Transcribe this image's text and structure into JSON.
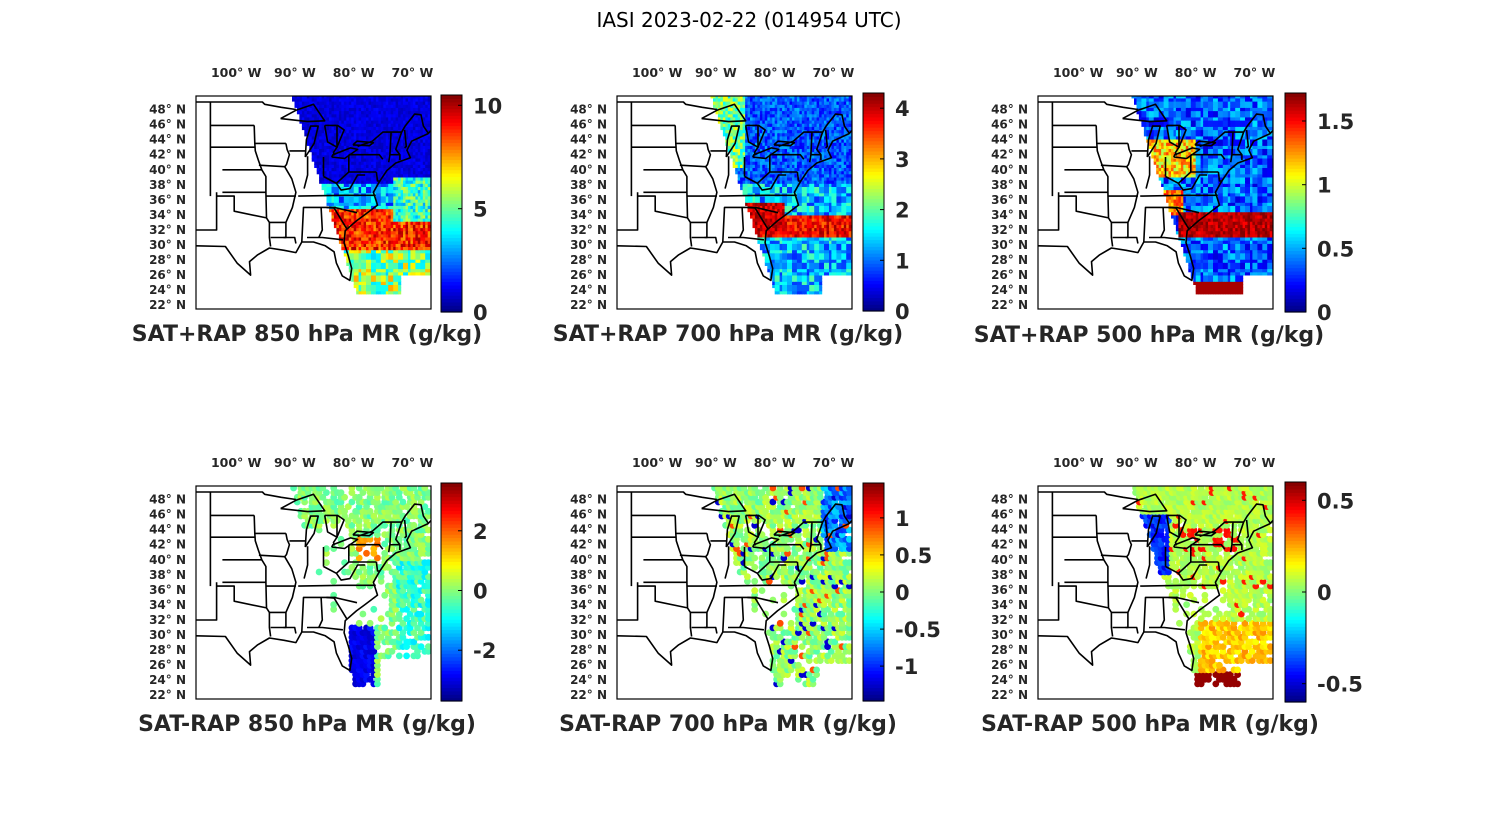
{
  "figure": {
    "title": "IASI 2023-02-22 (014954 UTC)",
    "lon_ticks": [
      "100° W",
      "90° W",
      "80° W",
      "70° W"
    ],
    "lat_ticks": [
      "48° N",
      "46° N",
      "44° N",
      "42° N",
      "40° N",
      "38° N",
      "36° N",
      "34° N",
      "32° N",
      "30° N",
      "28° N",
      "26° N",
      "24° N",
      "22° N"
    ],
    "colormap": "jet",
    "panels": [
      {
        "id": "sat-rap-sum-850",
        "label": "SAT+RAP 850 hPa MR (g/kg)",
        "pattern": "sum850",
        "clim": [
          0,
          10.5
        ],
        "cbar_ticks": [
          {
            "v": 0,
            "t": "0"
          },
          {
            "v": 5,
            "t": "5"
          },
          {
            "v": 10,
            "t": "10"
          }
        ]
      },
      {
        "id": "sat-rap-sum-700",
        "label": "SAT+RAP 700 hPa MR (g/kg)",
        "pattern": "sum700",
        "clim": [
          0,
          4.3
        ],
        "cbar_ticks": [
          {
            "v": 0,
            "t": "0"
          },
          {
            "v": 1,
            "t": "1"
          },
          {
            "v": 2,
            "t": "2"
          },
          {
            "v": 3,
            "t": "3"
          },
          {
            "v": 4,
            "t": "4"
          }
        ]
      },
      {
        "id": "sat-rap-sum-500",
        "label": "SAT+RAP 500 hPa MR (g/kg)",
        "pattern": "sum500",
        "clim": [
          0,
          1.72
        ],
        "cbar_ticks": [
          {
            "v": 0,
            "t": "0"
          },
          {
            "v": 0.5,
            "t": "0.5"
          },
          {
            "v": 1,
            "t": "1"
          },
          {
            "v": 1.5,
            "t": "1.5"
          }
        ]
      },
      {
        "id": "sat-rap-diff-850",
        "label": "SAT-RAP 850 hPa MR (g/kg)",
        "pattern": "diff850",
        "clim": [
          -3.7,
          3.6
        ],
        "cbar_ticks": [
          {
            "v": -2,
            "t": "-2"
          },
          {
            "v": 0,
            "t": "0"
          },
          {
            "v": 2,
            "t": "2"
          }
        ]
      },
      {
        "id": "sat-rap-diff-700",
        "label": "SAT-RAP 700 hPa MR (g/kg)",
        "pattern": "diff700",
        "clim": [
          -1.47,
          1.47
        ],
        "cbar_ticks": [
          {
            "v": -1,
            "t": "-1"
          },
          {
            "v": -0.5,
            "t": "-0.5"
          },
          {
            "v": 0,
            "t": "0"
          },
          {
            "v": 0.5,
            "t": "0.5"
          },
          {
            "v": 1,
            "t": "1"
          }
        ]
      },
      {
        "id": "sat-rap-diff-500",
        "label": "SAT-RAP 500 hPa MR (g/kg)",
        "pattern": "diff500",
        "clim": [
          -0.6,
          0.6
        ],
        "cbar_ticks": [
          {
            "v": -0.5,
            "t": "-0.5"
          },
          {
            "v": 0,
            "t": "0"
          },
          {
            "v": 0.5,
            "t": "0.5"
          }
        ]
      }
    ]
  }
}
